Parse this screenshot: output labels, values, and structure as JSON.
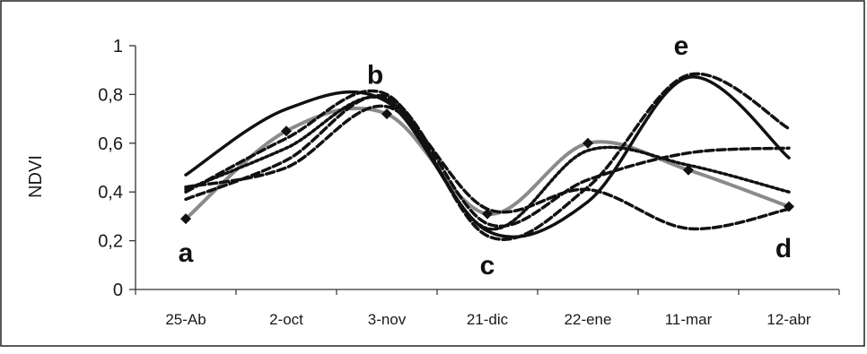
{
  "chart_data": {
    "type": "line",
    "title": "",
    "xlabel": "",
    "ylabel": "NDVI",
    "categories": [
      "25-Ab",
      "2-oct",
      "3-nov",
      "21-dic",
      "22-ene",
      "11-mar",
      "12-abr"
    ],
    "y_ticks": [
      "0",
      "0,2",
      "0,4",
      "0,6",
      "0,8",
      "1"
    ],
    "ylim": [
      0,
      1
    ],
    "grid": false,
    "legend": "none",
    "series": [
      {
        "values": [
          0.29,
          0.65,
          0.72,
          0.31,
          0.6,
          0.49,
          0.34
        ],
        "color": "#8a8a8a",
        "style": "solid-markers"
      },
      {
        "values": [
          0.47,
          0.74,
          0.77,
          0.24,
          0.36,
          0.87,
          0.54
        ],
        "color": "#111111",
        "style": "solid"
      },
      {
        "values": [
          0.4,
          0.62,
          0.8,
          0.22,
          0.42,
          0.88,
          0.66
        ],
        "color": "#111111",
        "style": "dashed"
      },
      {
        "values": [
          0.37,
          0.53,
          0.79,
          0.27,
          0.45,
          0.56,
          0.58
        ],
        "color": "#111111",
        "style": "dashed"
      },
      {
        "values": [
          0.42,
          0.5,
          0.75,
          0.33,
          0.41,
          0.25,
          0.33
        ],
        "color": "#111111",
        "style": "dashed"
      },
      {
        "values": [
          0.41,
          0.58,
          0.78,
          0.25,
          0.57,
          0.51,
          0.4
        ],
        "color": "#111111",
        "style": "dotted"
      }
    ],
    "annotations": [
      {
        "text": "a",
        "x": "25-Ab",
        "y": 0.15
      },
      {
        "text": "b",
        "x": "3-nov",
        "y": 0.88
      },
      {
        "text": "c",
        "x": "21-dic",
        "y": 0.1
      },
      {
        "text": "d",
        "x": "12-abr",
        "y": 0.17
      },
      {
        "text": "e",
        "x": "11-mar",
        "y": 1.0
      }
    ]
  }
}
